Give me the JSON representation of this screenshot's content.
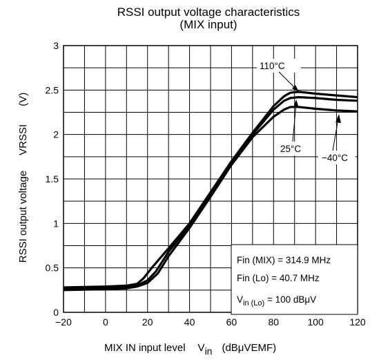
{
  "chart_data": {
    "type": "line",
    "title": "RSSI output voltage characteristics",
    "subtitle": "(MIX input)",
    "xlabel": "MIX IN input level",
    "xlabel_symbol": "V",
    "xlabel_symbol_sub": "in",
    "xlabel_unit": "(dBμVEMF)",
    "ylabel": "RSSI output voltage",
    "ylabel_symbol": "VRSSI",
    "ylabel_unit": "(V)",
    "xlim": [
      -20,
      120
    ],
    "ylim": [
      0,
      3
    ],
    "x_ticks": [
      "−20",
      "0",
      "20",
      "40",
      "60",
      "80",
      "100",
      "120"
    ],
    "y_ticks": [
      "0",
      "0.5",
      "1",
      "1.5",
      "2",
      "2.5",
      "3"
    ],
    "grid": true,
    "x_grid_step": 10,
    "y_grid_step": 0.25,
    "series": [
      {
        "name": "110°C",
        "x": [
          -20,
          0,
          10,
          15,
          18,
          22,
          30,
          40,
          50,
          60,
          70,
          80,
          85,
          88,
          92,
          100,
          110,
          120
        ],
        "y": [
          0.28,
          0.29,
          0.3,
          0.32,
          0.38,
          0.5,
          0.72,
          1.0,
          1.35,
          1.7,
          2.02,
          2.32,
          2.43,
          2.47,
          2.48,
          2.46,
          2.44,
          2.42
        ]
      },
      {
        "name": "25°C",
        "x": [
          -20,
          0,
          10,
          15,
          20,
          24,
          30,
          40,
          50,
          60,
          70,
          80,
          85,
          88,
          92,
          100,
          110,
          120
        ],
        "y": [
          0.26,
          0.27,
          0.28,
          0.3,
          0.36,
          0.46,
          0.68,
          0.98,
          1.33,
          1.69,
          2.0,
          2.28,
          2.38,
          2.41,
          2.42,
          2.41,
          2.39,
          2.38
        ]
      },
      {
        "name": "−40°C",
        "x": [
          -20,
          0,
          10,
          15,
          20,
          25,
          30,
          40,
          50,
          60,
          70,
          80,
          85,
          88,
          92,
          100,
          110,
          120
        ],
        "y": [
          0.25,
          0.26,
          0.27,
          0.29,
          0.33,
          0.44,
          0.63,
          0.95,
          1.3,
          1.66,
          1.97,
          2.2,
          2.28,
          2.31,
          2.31,
          2.29,
          2.27,
          2.26
        ]
      }
    ],
    "annotations": [
      "110°C",
      "25°C",
      "−40°C"
    ],
    "conditions": [
      {
        "main": "Fin (MIX) = 314.9 MHz",
        "sub": ""
      },
      {
        "main": "Fin (Lo) = 40.7 MHz",
        "sub": ""
      },
      {
        "main": "V",
        "sub": "in (Lo)",
        "tail": " = 100 dBμV"
      }
    ]
  }
}
